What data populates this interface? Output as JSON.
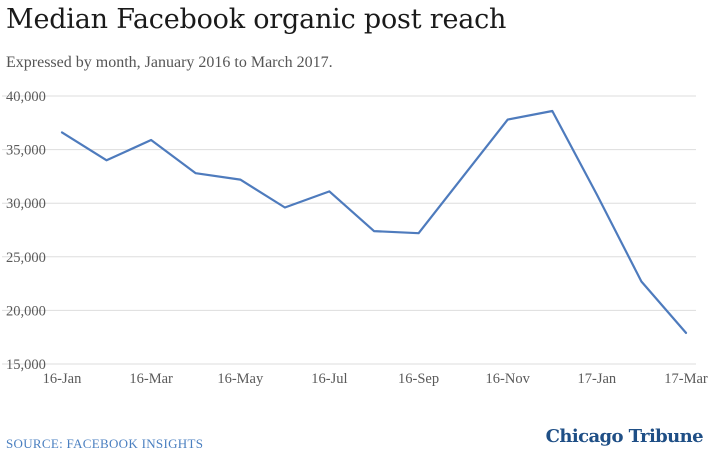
{
  "header": {
    "title": "Median Facebook organic post reach",
    "subtitle": "Expressed by month, January 2016 to March 2017."
  },
  "footer": {
    "source": "SOURCE: FACEBOOK INSIGHTS",
    "logo": "Chicago Tribune"
  },
  "colors": {
    "line": "#4e7bbd",
    "grid": "#dddddd"
  },
  "chart_data": {
    "type": "line",
    "title": "Median Facebook organic post reach",
    "subtitle": "Expressed by month, January 2016 to March 2017.",
    "x": [
      "16-Jan",
      "16-Feb",
      "16-Mar",
      "16-Apr",
      "16-May",
      "16-Jun",
      "16-Jul",
      "16-Aug",
      "16-Sep",
      "16-Oct",
      "16-Nov",
      "16-Dec",
      "17-Jan",
      "17-Feb",
      "17-Mar"
    ],
    "x_tick_labels": [
      "16-Jan",
      "16-Mar",
      "16-May",
      "16-Jul",
      "16-Sep",
      "16-Nov",
      "17-Jan",
      "17-Mar"
    ],
    "y_tick_labels": [
      "40,000",
      "35,000",
      "30,000",
      "25,000",
      "20,000",
      "15,000"
    ],
    "y_ticks": [
      40000,
      35000,
      30000,
      25000,
      20000,
      15000
    ],
    "series": [
      {
        "values": [
          36600,
          34000,
          35900,
          32800,
          32200,
          29600,
          31100,
          27400,
          27200,
          32500,
          37800,
          38600,
          30800,
          22700,
          17900
        ]
      }
    ],
    "ylim": [
      15000,
      40000
    ],
    "grid": true,
    "legend": "none"
  }
}
